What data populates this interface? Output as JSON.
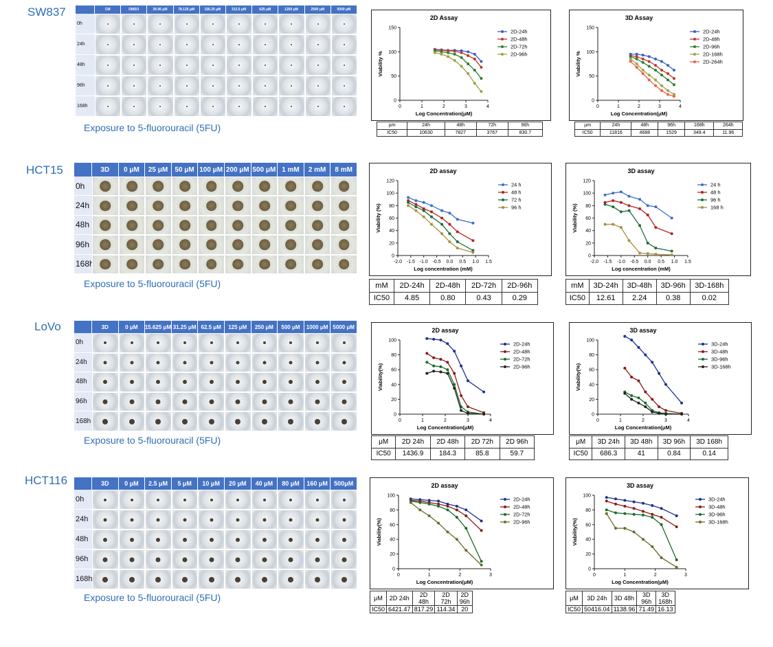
{
  "panels": [
    {
      "label": "SW837",
      "caption": "Exposure to 5-fluorouracil (5FU)",
      "grid": {
        "headers": [
          "CM",
          "DMSO",
          "39.06 μM",
          "78.125 μM",
          "156.25 μM",
          "312.5 μM",
          "625 μM",
          "1250 μM",
          "2500 μM",
          "5000 μM"
        ],
        "rows": [
          "0h",
          "24h",
          "48h",
          "96h",
          "168h"
        ]
      },
      "tables": [
        {
          "rows": [
            [
              "µm",
              "24h",
              "48h",
              "72h",
              "96h"
            ],
            [
              "IC50",
              "10630",
              "7827",
              "3767",
              "830.7"
            ]
          ]
        },
        {
          "rows": [
            [
              "µm",
              "24h",
              "48h",
              "96h",
              "168h",
              "264h"
            ],
            [
              "IC50",
              "11816",
              "4688",
              "1529",
              "349.4",
              "11.96"
            ]
          ]
        }
      ]
    },
    {
      "label": "HCT15",
      "caption": "Exposure to 5-fluorouracil (5FU)",
      "grid": {
        "headers": [
          "3D",
          "0 μM",
          "25 μM",
          "50 μM",
          "100 μM",
          "200 μM",
          "500 μM",
          "1 mM",
          "2 mM",
          "8 mM"
        ],
        "rows": [
          "0h",
          "24h",
          "48h",
          "96h",
          "168h"
        ]
      },
      "tables": [
        {
          "rows": [
            [
              "mM",
              "2D-24h",
              "2D-48h",
              "2D-72h",
              "2D-96h"
            ],
            [
              "IC50",
              "4.85",
              "0.80",
              "0.43",
              "0.29"
            ]
          ]
        },
        {
          "rows": [
            [
              "mM",
              "3D-24h",
              "3D-48h",
              "3D-96h",
              "3D-168h"
            ],
            [
              "IC50",
              "12.61",
              "2.24",
              "0.38",
              "0.02"
            ]
          ]
        }
      ]
    },
    {
      "label": "LoVo",
      "caption": "Exposure to 5-fluorouracil (5FU)",
      "grid": {
        "headers": [
          "3D",
          "0 μM",
          "15.625 μM",
          "31.25 μM",
          "62.5 μM",
          "125 μM",
          "250 μM",
          "500 μM",
          "1000 μM",
          "5000 μM"
        ],
        "rows": [
          "0h",
          "24h",
          "48h",
          "96h",
          "168h"
        ]
      },
      "tables": [
        {
          "rows": [
            [
              "μM",
              "2D 24h",
              "2D 48h",
              "2D 72h",
              "2D 96h"
            ],
            [
              "IC50",
              "1436.9",
              "184.3",
              "85.8",
              "59.7"
            ]
          ]
        },
        {
          "rows": [
            [
              "μM",
              "3D 24h",
              "3D 48h",
              "3D 96h",
              "3D 168h"
            ],
            [
              "IC50",
              "686.3",
              "41",
              "0.84",
              "0.14"
            ]
          ]
        }
      ]
    },
    {
      "label": "HCT116",
      "caption": "Exposure to 5-fluorouracil (5FU)",
      "grid": {
        "headers": [
          "3D",
          "0 μM",
          "2.5 μM",
          "5 μM",
          "10 μM",
          "20 μM",
          "40 μM",
          "80 μM",
          "160 μM",
          "500μM"
        ],
        "rows": [
          "0h",
          "24h",
          "48h",
          "96h",
          "168h"
        ]
      },
      "tables": [
        {
          "rows": [
            [
              "μM",
              "2D 24h",
              "2D 48h",
              "2D 72h",
              "2D 96h"
            ],
            [
              "IC50",
              "6421.47",
              "817.29",
              "114.34",
              "20"
            ]
          ]
        },
        {
          "rows": [
            [
              "μM",
              "3D 24h",
              "3D 48h",
              "3D 96h",
              "3D 168h"
            ],
            [
              "IC50",
              "50416.04",
              "1138.96",
              "71.49",
              "16.13"
            ]
          ]
        }
      ]
    }
  ],
  "chart_data": [
    {
      "type": "line",
      "title": "2D Assay",
      "xlabel": "Log Concentration(μM)",
      "ylabel": "Viability %",
      "x": [
        1.59,
        1.89,
        2.19,
        2.49,
        2.8,
        3.1,
        3.4,
        3.7
      ],
      "xlim": [
        0,
        4
      ],
      "xticks": [
        0,
        1,
        2,
        3,
        4
      ],
      "ylim": [
        0,
        150
      ],
      "yticks": [
        0,
        50,
        100,
        150
      ],
      "series": [
        {
          "name": "2D-24h",
          "color": "#3a5fcd",
          "values": [
            105,
            104,
            103,
            103,
            102,
            100,
            95,
            80
          ]
        },
        {
          "name": "2D-48h",
          "color": "#c0392b",
          "values": [
            104,
            103,
            102,
            101,
            98,
            92,
            85,
            68
          ]
        },
        {
          "name": "2D-72h",
          "color": "#2e7d32",
          "values": [
            102,
            100,
            98,
            95,
            88,
            75,
            62,
            45
          ]
        },
        {
          "name": "2D-96h",
          "color": "#a0a040",
          "values": [
            98,
            95,
            90,
            82,
            70,
            55,
            35,
            18
          ]
        }
      ]
    },
    {
      "type": "line",
      "title": "3D Assay",
      "xlabel": "Log Concentration(μM)",
      "ylabel": "Viability %",
      "x": [
        1.59,
        1.89,
        2.19,
        2.49,
        2.8,
        3.1,
        3.4,
        3.7
      ],
      "xlim": [
        0,
        4
      ],
      "xticks": [
        0,
        1,
        2,
        3,
        4
      ],
      "ylim": [
        0,
        150
      ],
      "yticks": [
        0,
        50,
        100,
        150
      ],
      "series": [
        {
          "name": "2D-24h",
          "color": "#3a5fcd",
          "values": [
            95,
            95,
            93,
            90,
            85,
            80,
            72,
            62
          ]
        },
        {
          "name": "2D-48h",
          "color": "#c0392b",
          "values": [
            92,
            90,
            85,
            80,
            72,
            62,
            55,
            45
          ]
        },
        {
          "name": "2D-96h",
          "color": "#2e7d32",
          "values": [
            90,
            85,
            78,
            70,
            62,
            52,
            42,
            32
          ]
        },
        {
          "name": "2D-168h",
          "color": "#a0a040",
          "values": [
            85,
            75,
            62,
            52,
            42,
            30,
            20,
            12
          ]
        },
        {
          "name": "2D-264h",
          "color": "#e8604c",
          "values": [
            80,
            68,
            55,
            42,
            30,
            20,
            12,
            8
          ]
        }
      ]
    },
    {
      "type": "line",
      "title": "2D assay",
      "xlabel": "Log concentration (mM)",
      "ylabel": "Viability (%)",
      "x": [
        -1.6,
        -1.3,
        -1,
        -0.7,
        -0.3,
        0,
        0.3,
        0.9
      ],
      "xlim": [
        -2,
        1.5
      ],
      "xticks": [
        {
          "value": -2,
          "label": "-2.0"
        },
        -1.5,
        {
          "value": -1,
          "label": "-1.0"
        },
        -0.5,
        {
          "value": 0,
          "label": "0.0"
        },
        0.5,
        {
          "value": 1,
          "label": "1.0"
        },
        1.5
      ],
      "ylim": [
        0,
        120
      ],
      "yticks": [
        0,
        20,
        40,
        60,
        80,
        100,
        120
      ],
      "series": [
        {
          "name": "24 h",
          "color": "#3b6fc4",
          "values": [
            93,
            88,
            85,
            80,
            72,
            68,
            58,
            52
          ]
        },
        {
          "name": "48 h",
          "color": "#b22222",
          "values": [
            88,
            82,
            75,
            70,
            60,
            50,
            38,
            24
          ]
        },
        {
          "name": "72 h",
          "color": "#1e6b3a",
          "values": [
            85,
            78,
            72,
            62,
            50,
            35,
            22,
            8
          ]
        },
        {
          "name": "96 h",
          "color": "#a89040",
          "values": [
            80,
            72,
            62,
            50,
            35,
            22,
            12,
            5
          ]
        }
      ]
    },
    {
      "type": "line",
      "title": "3D assay",
      "xlabel": "Log concentration (mM)",
      "ylabel": "Viability (%)",
      "x": [
        -1.6,
        -1.3,
        -1,
        -0.7,
        -0.3,
        0,
        0.3,
        0.9
      ],
      "xlim": [
        -2,
        1.5
      ],
      "xticks": [
        {
          "value": -2,
          "label": "-2.0"
        },
        -1.5,
        {
          "value": -1,
          "label": "-1.0"
        },
        -0.5,
        {
          "value": 0,
          "label": "0.0"
        },
        0.5,
        {
          "value": 1,
          "label": "1.0"
        },
        1.5
      ],
      "ylim": [
        0,
        120
      ],
      "yticks": [
        0,
        20,
        40,
        60,
        80,
        100,
        120
      ],
      "series": [
        {
          "name": "24 h",
          "color": "#3b6fc4",
          "values": [
            97,
            100,
            102,
            95,
            90,
            80,
            78,
            60
          ]
        },
        {
          "name": "48 h",
          "color": "#b22222",
          "values": [
            85,
            88,
            85,
            80,
            75,
            65,
            45,
            35
          ]
        },
        {
          "name": "96 h",
          "color": "#1e6b3a",
          "values": [
            82,
            78,
            70,
            72,
            48,
            20,
            12,
            7
          ]
        },
        {
          "name": "168 h",
          "color": "#a89040",
          "values": [
            50,
            50,
            45,
            24,
            4,
            3,
            2,
            1
          ]
        }
      ]
    },
    {
      "type": "line",
      "title": "2D assay",
      "xlabel": "Log Concentration(μM)",
      "ylabel": "Viability(%)",
      "x": [
        1.19,
        1.49,
        1.8,
        2.1,
        2.4,
        2.7,
        3,
        3.7
      ],
      "xlim": [
        0,
        4
      ],
      "xticks": [
        0,
        1,
        2,
        3,
        4
      ],
      "ylim": [
        0,
        100
      ],
      "yticks": [
        0,
        20,
        40,
        60,
        80,
        100
      ],
      "series": [
        {
          "name": "2D-24h",
          "color": "#1f2f8f",
          "values": [
            102,
            101,
            100,
            95,
            85,
            65,
            45,
            30
          ]
        },
        {
          "name": "2D-48h",
          "color": "#8b1a1a",
          "values": [
            82,
            76,
            74,
            70,
            55,
            25,
            10,
            2
          ]
        },
        {
          "name": "2D-72h",
          "color": "#1a6b2a",
          "values": [
            70,
            65,
            64,
            60,
            40,
            10,
            3,
            0
          ]
        },
        {
          "name": "2D-96h",
          "color": "#222222",
          "values": [
            55,
            58,
            57,
            55,
            35,
            5,
            1,
            0
          ]
        }
      ]
    },
    {
      "type": "line",
      "title": "3D assay",
      "xlabel": "Log Concentration(μM)",
      "ylabel": "Viability(%)",
      "x": [
        1.19,
        1.49,
        1.8,
        2.1,
        2.4,
        2.7,
        3,
        3.7
      ],
      "xlim": [
        0,
        4
      ],
      "xticks": [
        0,
        1,
        2,
        3,
        4
      ],
      "ylim": [
        0,
        100
      ],
      "yticks": [
        0,
        20,
        40,
        60,
        80,
        100
      ],
      "series": [
        {
          "name": "3D-24h",
          "color": "#1f2f8f",
          "values": [
            105,
            100,
            90,
            80,
            70,
            55,
            40,
            15
          ]
        },
        {
          "name": "3D-48h",
          "color": "#8b1a1a",
          "values": [
            62,
            50,
            45,
            30,
            20,
            10,
            5,
            1
          ]
        },
        {
          "name": "3D-96h",
          "color": "#1a6b2a",
          "values": [
            30,
            25,
            22,
            15,
            5,
            2,
            1,
            0
          ]
        },
        {
          "name": "3D-168h",
          "color": "#222222",
          "values": [
            28,
            20,
            15,
            10,
            3,
            1,
            0,
            0
          ]
        }
      ]
    },
    {
      "type": "line",
      "title": "2D assay",
      "xlabel": "Log Concentration(μM)",
      "ylabel": "Viability(%)",
      "x": [
        0.4,
        0.7,
        1,
        1.3,
        1.6,
        1.9,
        2.2,
        2.7
      ],
      "xlim": [
        0,
        3
      ],
      "xticks": [
        0,
        1,
        2,
        3
      ],
      "ylim": [
        0,
        100
      ],
      "yticks": [
        0,
        20,
        40,
        60,
        80,
        100
      ],
      "series": [
        {
          "name": "2D-24h",
          "color": "#1f2f8f",
          "values": [
            95,
            94,
            93,
            92,
            88,
            85,
            80,
            65
          ]
        },
        {
          "name": "2D-48h",
          "color": "#8b1a1a",
          "values": [
            93,
            92,
            90,
            88,
            85,
            80,
            72,
            52
          ]
        },
        {
          "name": "2D-72h",
          "color": "#1a6b2a",
          "values": [
            92,
            90,
            88,
            85,
            80,
            70,
            55,
            10
          ]
        },
        {
          "name": "2D-96h",
          "color": "#6b6b2a",
          "values": [
            90,
            80,
            72,
            62,
            50,
            40,
            25,
            5
          ]
        }
      ]
    },
    {
      "type": "line",
      "title": "3D assay",
      "xlabel": "Log Concentration(μM)",
      "ylabel": "Viability(%)",
      "x": [
        0.4,
        0.7,
        1,
        1.3,
        1.6,
        1.9,
        2.2,
        2.7
      ],
      "xlim": [
        0,
        3
      ],
      "xticks": [
        0,
        1,
        2,
        3
      ],
      "ylim": [
        0,
        100
      ],
      "yticks": [
        0,
        20,
        40,
        60,
        80,
        100
      ],
      "series": [
        {
          "name": "3D-24h",
          "color": "#1f2f8f",
          "values": [
            97,
            95,
            93,
            91,
            89,
            86,
            82,
            72
          ]
        },
        {
          "name": "3D-48h",
          "color": "#8b1a1a",
          "values": [
            92,
            88,
            85,
            82,
            78,
            74,
            70,
            57
          ]
        },
        {
          "name": "3D-96h",
          "color": "#1a6b2a",
          "values": [
            80,
            76,
            75,
            74,
            73,
            70,
            60,
            12
          ]
        },
        {
          "name": "3D-168h",
          "color": "#6b6b2a",
          "values": [
            75,
            55,
            55,
            50,
            40,
            30,
            15,
            2
          ]
        }
      ]
    }
  ]
}
